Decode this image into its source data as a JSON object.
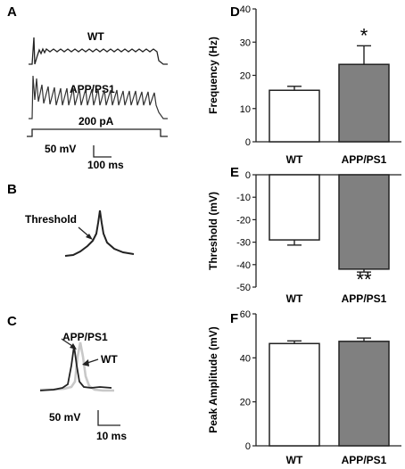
{
  "panels": {
    "A": {
      "letter": "A",
      "trace_labels": [
        "WT",
        "APP/PS1"
      ],
      "stim_label": "200 pA",
      "scale_v": "50 mV",
      "scale_t": "100 ms"
    },
    "B": {
      "letter": "B",
      "annotation": "Threshold"
    },
    "C": {
      "letter": "C",
      "trace_labels": [
        "APP/PS1",
        "WT"
      ],
      "scale_v": "50 mV",
      "scale_t": "10 ms"
    }
  },
  "colors": {
    "wt_fill": "#ffffff",
    "app_fill": "#808080",
    "trace_dark": "#222222",
    "trace_light": "#c8c8c8"
  },
  "chart_data": [
    {
      "letter": "D",
      "type": "bar",
      "categories": [
        "WT",
        "APP/PS1"
      ],
      "values": [
        15.5,
        23.3
      ],
      "errors": [
        1.2,
        5.6
      ],
      "ylabel": "Frequency (Hz)",
      "ylim": [
        0,
        40
      ],
      "yticks": [
        0,
        10,
        20,
        30,
        40
      ],
      "significance": [
        "",
        "*"
      ]
    },
    {
      "letter": "E",
      "type": "bar",
      "categories": [
        "WT",
        "APP/PS1"
      ],
      "values": [
        -29,
        -42
      ],
      "errors": [
        2.3,
        1.3
      ],
      "ylabel": "Threshold (mV)",
      "ylim": [
        -50,
        0
      ],
      "yticks": [
        0,
        -10,
        -20,
        -30,
        -40,
        -50
      ],
      "significance": [
        "",
        "**"
      ]
    },
    {
      "letter": "F",
      "type": "bar",
      "categories": [
        "WT",
        "APP/PS1"
      ],
      "values": [
        46.5,
        47.5
      ],
      "errors": [
        1.2,
        1.5
      ],
      "ylabel": "Peak Amplitude (mV)",
      "ylim": [
        0,
        60
      ],
      "yticks": [
        0,
        20,
        40,
        60
      ],
      "significance": [
        "",
        ""
      ]
    }
  ]
}
